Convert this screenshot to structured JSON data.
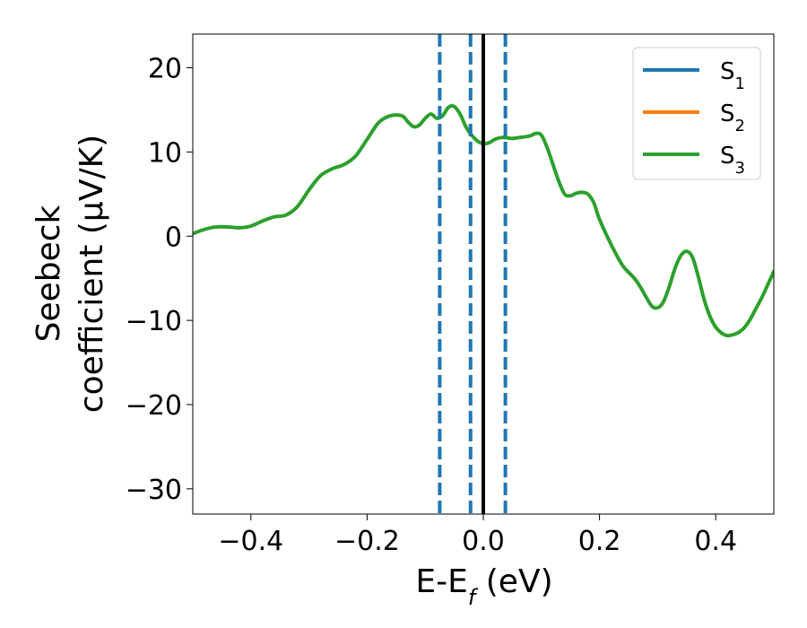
{
  "chart_data": {
    "type": "line",
    "xlabel": "E-E",
    "xlabel_sub": "f",
    "xlabel_unit": " (eV)",
    "ylabel_line1": "Seebeck",
    "ylabel_line2": "coefficient  (μV/K)",
    "xlim": [
      -0.5,
      0.5
    ],
    "ylim": [
      -33,
      24
    ],
    "xticks": [
      -0.4,
      -0.2,
      0.0,
      0.2,
      0.4
    ],
    "xtick_labels": [
      "−0.4",
      "−0.2",
      "0.0",
      "0.2",
      "0.4"
    ],
    "yticks": [
      -30,
      -20,
      -10,
      0,
      10,
      20
    ],
    "ytick_labels": [
      "−30",
      "−20",
      "−10",
      "0",
      "10",
      "20"
    ],
    "grid": false,
    "legend_position": "top-right",
    "legend": [
      {
        "label": "S",
        "sub": "1",
        "color": "#1f77b4"
      },
      {
        "label": "S",
        "sub": "2",
        "color": "#ff7f0e"
      },
      {
        "label": "S",
        "sub": "3",
        "color": "#2ca02c"
      }
    ],
    "series": [
      {
        "name": "S3",
        "color": "#2ca02c",
        "x": [
          -0.5,
          -0.48,
          -0.46,
          -0.44,
          -0.42,
          -0.4,
          -0.38,
          -0.36,
          -0.34,
          -0.32,
          -0.3,
          -0.28,
          -0.26,
          -0.24,
          -0.22,
          -0.2,
          -0.18,
          -0.16,
          -0.14,
          -0.13,
          -0.12,
          -0.11,
          -0.1,
          -0.09,
          -0.08,
          -0.07,
          -0.06,
          -0.05,
          -0.04,
          -0.03,
          -0.02,
          -0.01,
          0.0,
          0.01,
          0.02,
          0.03,
          0.04,
          0.05,
          0.06,
          0.08,
          0.09,
          0.1,
          0.11,
          0.12,
          0.13,
          0.14,
          0.15,
          0.16,
          0.17,
          0.18,
          0.19,
          0.2,
          0.22,
          0.24,
          0.26,
          0.27,
          0.28,
          0.29,
          0.3,
          0.31,
          0.32,
          0.33,
          0.34,
          0.35,
          0.36,
          0.37,
          0.38,
          0.39,
          0.4,
          0.41,
          0.42,
          0.43,
          0.44,
          0.45,
          0.46,
          0.47,
          0.48,
          0.49,
          0.5
        ],
        "y": [
          0.3,
          0.8,
          1.1,
          1.1,
          1.0,
          1.2,
          1.8,
          2.3,
          2.5,
          3.5,
          5.5,
          7.2,
          8.0,
          8.5,
          9.5,
          11.5,
          13.5,
          14.3,
          14.3,
          13.6,
          13.0,
          13.2,
          14.0,
          14.5,
          14.0,
          14.3,
          15.3,
          15.4,
          14.5,
          13.0,
          12.0,
          11.3,
          11.0,
          11.1,
          11.5,
          11.7,
          11.7,
          11.6,
          11.7,
          11.9,
          12.2,
          12.0,
          10.5,
          8.5,
          6.5,
          5.0,
          4.8,
          5.1,
          5.2,
          5.0,
          4.0,
          2.0,
          -1.0,
          -3.5,
          -5.0,
          -6.0,
          -7.2,
          -8.3,
          -8.5,
          -7.8,
          -6.0,
          -3.8,
          -2.3,
          -1.8,
          -2.5,
          -4.8,
          -7.5,
          -9.5,
          -10.8,
          -11.5,
          -11.8,
          -11.7,
          -11.4,
          -10.8,
          -9.8,
          -8.5,
          -7.2,
          -5.7,
          -4.2
        ]
      }
    ],
    "vlines": [
      {
        "x": 0.0,
        "style": "solid",
        "color": "#000000"
      },
      {
        "x": -0.075,
        "style": "dashed",
        "color": "#1f77b4"
      },
      {
        "x": -0.022,
        "style": "dashed",
        "color": "#1f77b4"
      },
      {
        "x": 0.038,
        "style": "dashed",
        "color": "#1f77b4"
      }
    ]
  }
}
